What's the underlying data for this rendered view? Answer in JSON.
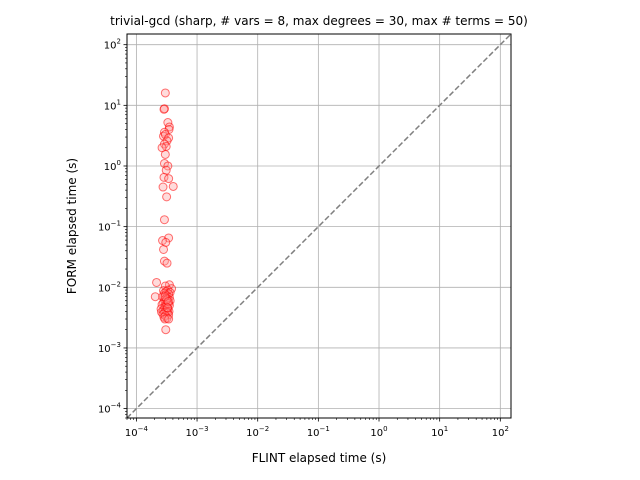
{
  "chart_data": {
    "type": "scatter",
    "title": "trivial-gcd (sharp, # vars = 8, max degrees = 30, max # terms = 50)",
    "xlabel": "FLINT elapsed time (s)",
    "ylabel": "FORM elapsed time (s)",
    "xscale": "log",
    "yscale": "log",
    "xlim": [
      7e-05,
      150
    ],
    "ylim": [
      7e-05,
      150
    ],
    "grid": true,
    "x_ticks": [
      {
        "value": 0.0001,
        "base": "10",
        "exp": "−4"
      },
      {
        "value": 0.001,
        "base": "10",
        "exp": "−3"
      },
      {
        "value": 0.01,
        "base": "10",
        "exp": "−2"
      },
      {
        "value": 0.1,
        "base": "10",
        "exp": "−1"
      },
      {
        "value": 1,
        "base": "10",
        "exp": "0"
      },
      {
        "value": 10,
        "base": "10",
        "exp": "1"
      },
      {
        "value": 100,
        "base": "10",
        "exp": "2"
      }
    ],
    "y_ticks": [
      {
        "value": 0.0001,
        "base": "10",
        "exp": "−4"
      },
      {
        "value": 0.001,
        "base": "10",
        "exp": "−3"
      },
      {
        "value": 0.01,
        "base": "10",
        "exp": "−2"
      },
      {
        "value": 0.1,
        "base": "10",
        "exp": "−1"
      },
      {
        "value": 1,
        "base": "10",
        "exp": "0"
      },
      {
        "value": 10,
        "base": "10",
        "exp": "1"
      },
      {
        "value": 100,
        "base": "10",
        "exp": "2"
      }
    ],
    "reference_line": {
      "style": "dashed",
      "color": "#808080",
      "from": [
        7e-05,
        7e-05
      ],
      "to": [
        150,
        150
      ]
    },
    "marker": {
      "shape": "circle-open",
      "edge_color": "#ff0000",
      "face_color": "#ff9999",
      "alpha": 0.45
    },
    "points": [
      [
        0.0003,
        16.0
      ],
      [
        0.00029,
        8.8
      ],
      [
        0.000285,
        8.6
      ],
      [
        0.00033,
        5.2
      ],
      [
        0.00035,
        4.4
      ],
      [
        0.000345,
        4.0
      ],
      [
        0.00029,
        3.6
      ],
      [
        0.00028,
        3.1
      ],
      [
        0.0003,
        3.3
      ],
      [
        0.00034,
        2.9
      ],
      [
        0.00032,
        2.6
      ],
      [
        0.00029,
        2.3
      ],
      [
        0.00031,
        2.1
      ],
      [
        0.000265,
        2.0
      ],
      [
        0.0003,
        1.55
      ],
      [
        0.00029,
        1.1
      ],
      [
        0.00033,
        1.0
      ],
      [
        0.00031,
        0.85
      ],
      [
        0.000285,
        0.65
      ],
      [
        0.00034,
        0.62
      ],
      [
        0.000405,
        0.46
      ],
      [
        0.000275,
        0.45
      ],
      [
        0.000315,
        0.31
      ],
      [
        0.00029,
        0.13
      ],
      [
        0.00034,
        0.065
      ],
      [
        0.00027,
        0.059
      ],
      [
        0.000305,
        0.055
      ],
      [
        0.00028,
        0.042
      ],
      [
        0.00029,
        0.027
      ],
      [
        0.00032,
        0.025
      ],
      [
        0.000215,
        0.012
      ],
      [
        0.00035,
        0.011
      ],
      [
        0.0003,
        0.0105
      ],
      [
        0.00038,
        0.0095
      ],
      [
        0.00033,
        0.009
      ],
      [
        0.00028,
        0.0088
      ],
      [
        0.00031,
        0.0085
      ],
      [
        0.00036,
        0.0082
      ],
      [
        0.00029,
        0.008
      ],
      [
        0.00034,
        0.0078
      ],
      [
        0.0003,
        0.0075
      ],
      [
        0.00032,
        0.0072
      ],
      [
        0.00027,
        0.007
      ],
      [
        0.000205,
        0.007
      ],
      [
        0.00035,
        0.0068
      ],
      [
        0.00031,
        0.0066
      ],
      [
        0.00033,
        0.0064
      ],
      [
        0.00029,
        0.0062
      ],
      [
        0.00036,
        0.006
      ],
      [
        0.0003,
        0.0058
      ],
      [
        0.00028,
        0.0056
      ],
      [
        0.00032,
        0.0055
      ],
      [
        0.00034,
        0.0054
      ],
      [
        0.000265,
        0.0052
      ],
      [
        0.0003,
        0.005
      ],
      [
        0.00035,
        0.005
      ],
      [
        0.00031,
        0.0048
      ],
      [
        0.00029,
        0.0046
      ],
      [
        0.00033,
        0.0045
      ],
      [
        0.000255,
        0.0044
      ],
      [
        0.00028,
        0.0042
      ],
      [
        0.0003,
        0.0041
      ],
      [
        0.00032,
        0.004
      ],
      [
        0.000345,
        0.004
      ],
      [
        0.00026,
        0.0039
      ],
      [
        0.00031,
        0.0039
      ],
      [
        0.00029,
        0.0038
      ],
      [
        0.00033,
        0.0038
      ],
      [
        0.000275,
        0.0036
      ],
      [
        0.00034,
        0.0035
      ],
      [
        0.0003,
        0.0034
      ],
      [
        0.000285,
        0.0032
      ],
      [
        0.00032,
        0.0031
      ],
      [
        0.000295,
        0.003
      ],
      [
        0.00034,
        0.003
      ],
      [
        0.000305,
        0.002
      ],
      [
        0.000315,
        0.0062
      ],
      [
        0.000295,
        0.007
      ],
      [
        0.000335,
        0.0058
      ],
      [
        0.000325,
        0.0046
      ]
    ]
  }
}
